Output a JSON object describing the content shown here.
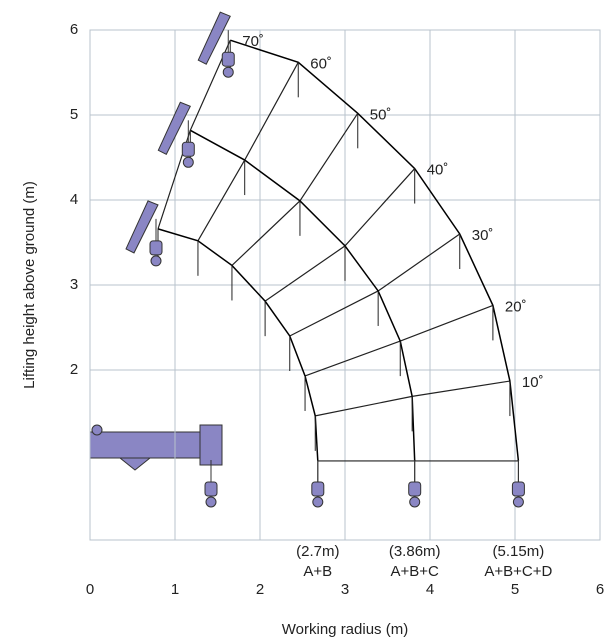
{
  "chart_data": {
    "type": "crane-range",
    "xlabel": "Working radius (m)",
    "ylabel": "Lifting height above ground (m)",
    "xlim": [
      0,
      6
    ],
    "ylim": [
      0,
      6
    ],
    "xticks": [
      0,
      1,
      2,
      3,
      4,
      5,
      6
    ],
    "yticks": [
      2,
      3,
      4,
      5,
      6
    ],
    "grid": true,
    "categories": [
      null,
      "10˚",
      "20˚",
      "30˚",
      "40˚",
      "50˚",
      "60˚",
      "70˚"
    ],
    "series": [
      {
        "name": "A+B",
        "radius_label": "(2.7m)",
        "color": "#000000",
        "x": [
          2.68,
          2.65,
          2.53,
          2.35,
          2.06,
          1.67,
          1.27,
          0.8
        ],
        "values": [
          0.93,
          1.46,
          1.93,
          2.4,
          2.81,
          3.23,
          3.52,
          3.66
        ]
      },
      {
        "name": "A+B+C",
        "radius_label": "(3.86m)",
        "color": "#000000",
        "x": [
          3.82,
          3.79,
          3.65,
          3.39,
          3.0,
          2.47,
          1.82,
          1.18
        ],
        "values": [
          0.93,
          1.69,
          2.34,
          2.93,
          3.46,
          3.99,
          4.47,
          4.82
        ]
      },
      {
        "name": "A+B+C+D",
        "radius_label": "(5.15m)",
        "color": "#000000",
        "x": [
          5.04,
          4.94,
          4.74,
          4.35,
          3.82,
          3.15,
          2.45,
          1.65
        ],
        "values": [
          0.93,
          1.87,
          2.76,
          3.6,
          4.37,
          5.02,
          5.62,
          5.88
        ]
      }
    ]
  }
}
